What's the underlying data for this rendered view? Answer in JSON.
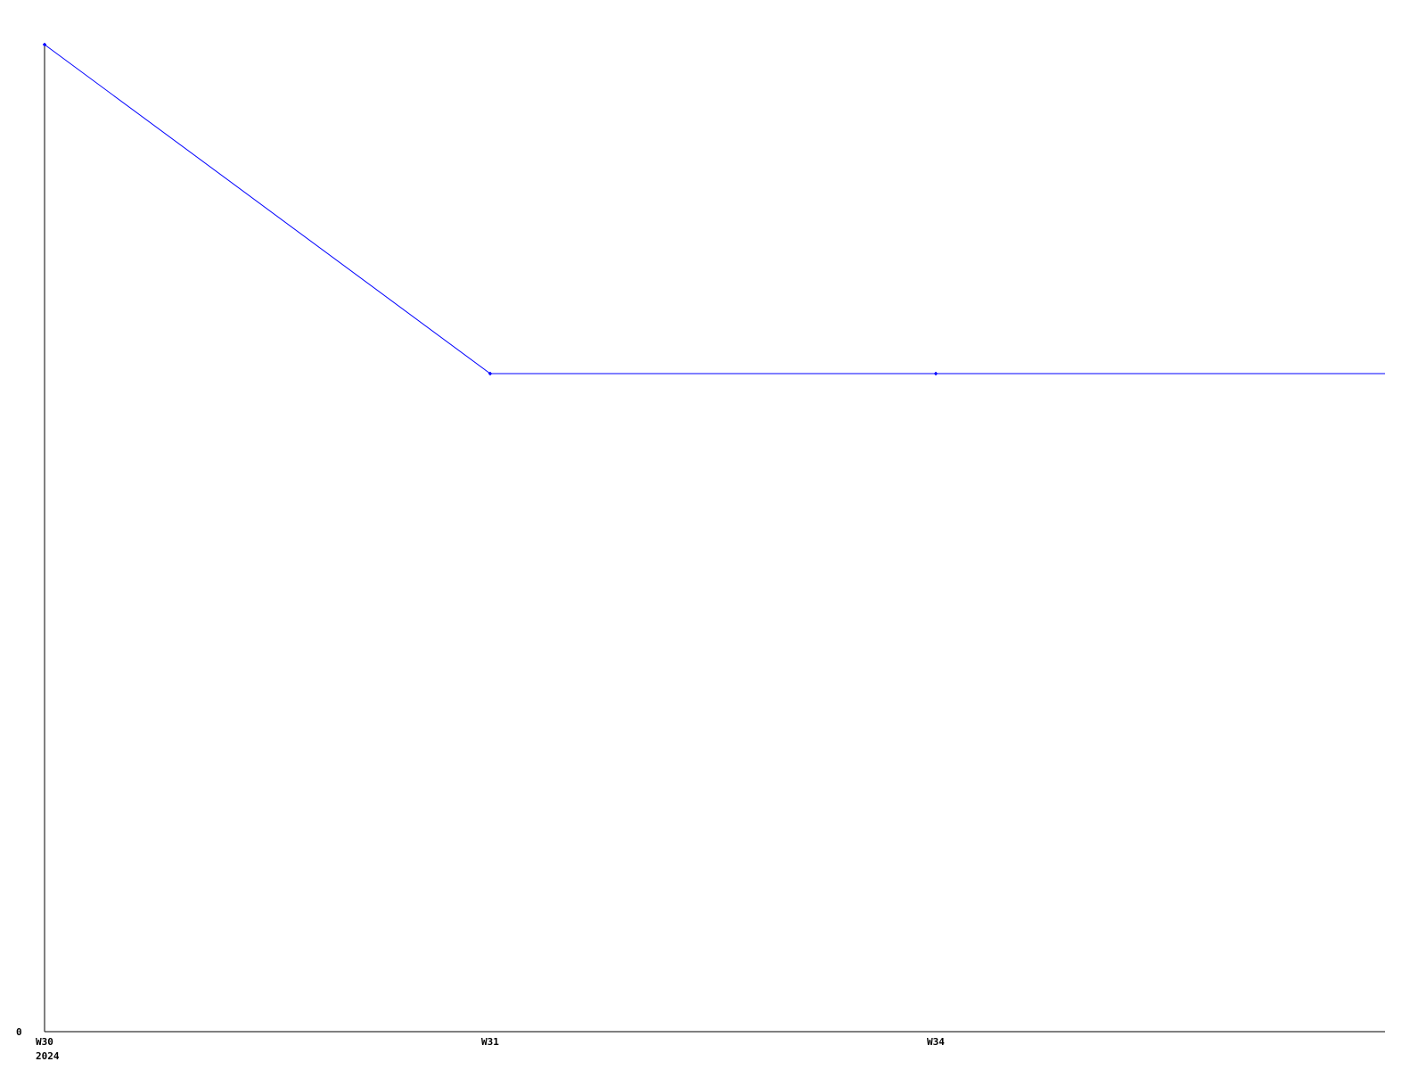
{
  "chart_data": {
    "type": "line",
    "title": "",
    "xlabel": "",
    "ylabel": "",
    "categories": [
      "W30",
      "W31",
      "W34"
    ],
    "category_sublabels": [
      "2024",
      "",
      ""
    ],
    "values": [
      3,
      2,
      2
    ],
    "trailing_value": 2,
    "ylim": [
      0,
      3
    ],
    "y_tick_labels": [
      "0"
    ],
    "grid": false,
    "legend": "none",
    "colors": {
      "line": "#0000ff",
      "axis": "#000000",
      "background": "#ffffff"
    }
  }
}
